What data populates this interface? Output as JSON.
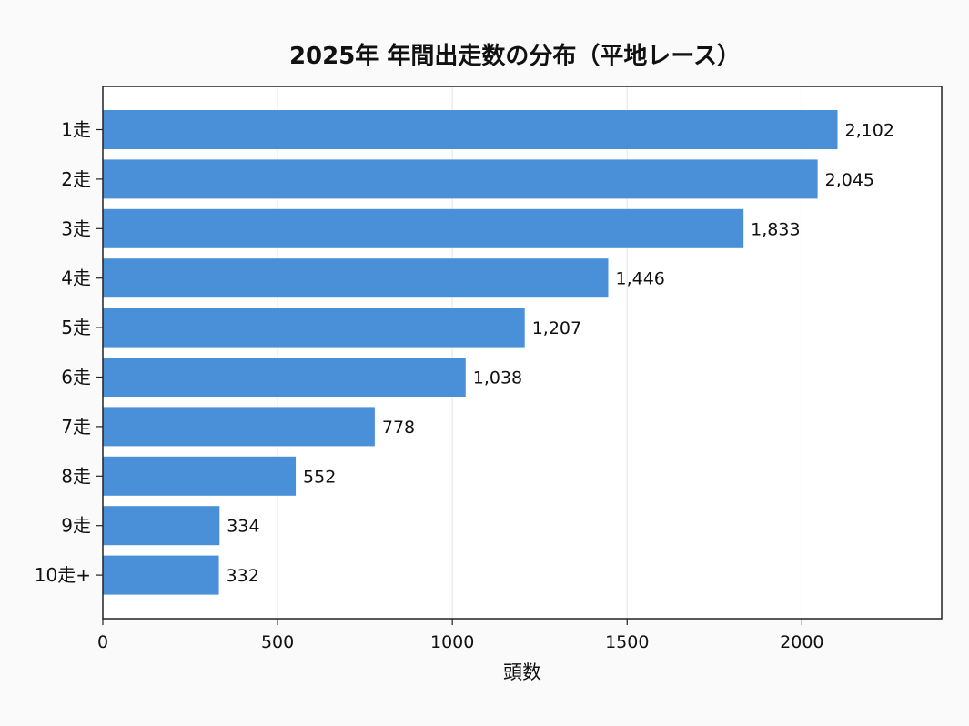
{
  "chart_data": {
    "type": "bar",
    "orientation": "horizontal",
    "title": "2025年 年間出走数の分布（平地レース）",
    "xlabel": "頭数",
    "ylabel": "",
    "categories": [
      "1走",
      "2走",
      "3走",
      "4走",
      "5走",
      "6走",
      "7走",
      "8走",
      "9走",
      "10走+"
    ],
    "values": [
      2102,
      2045,
      1833,
      1446,
      1207,
      1038,
      778,
      552,
      334,
      332
    ],
    "value_labels": [
      "2,102",
      "2,045",
      "1,833",
      "1,446",
      "1,207",
      "1,038",
      "778",
      "552",
      "334",
      "332"
    ],
    "xlim": [
      0,
      2400
    ],
    "xticks": [
      0,
      500,
      1000,
      1500,
      2000
    ],
    "xtick_labels": [
      "0",
      "500",
      "1000",
      "1500",
      "2000"
    ],
    "grid": "x",
    "colors": {
      "bar": "#4a90d9",
      "background": "#fafafa",
      "plot_background": "#ffffff",
      "grid": "#e6e6e6",
      "axis": "#222222"
    }
  }
}
